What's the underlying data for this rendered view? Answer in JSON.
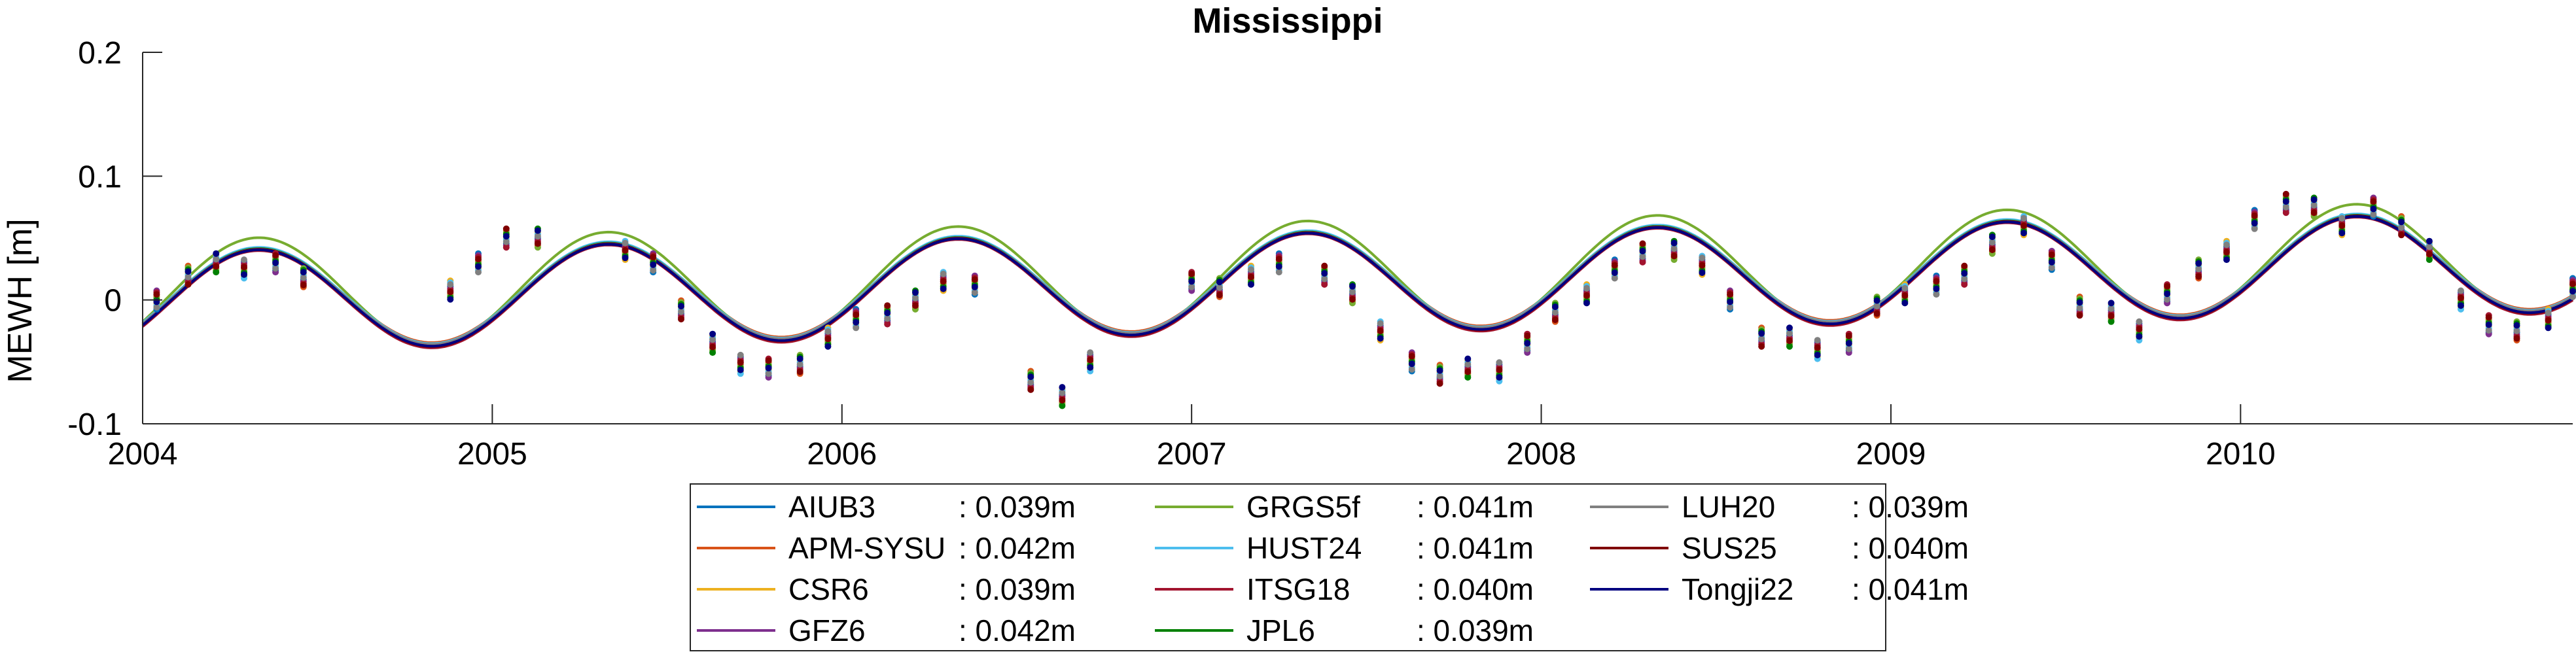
{
  "chart_data": {
    "type": "line",
    "title": "Mississippi",
    "xlabel": "",
    "ylabel": "MEWH [m]",
    "xlim": [
      2004,
      2010.95
    ],
    "ylim": [
      -0.1,
      0.2
    ],
    "x_ticks": [
      "2004",
      "2005",
      "2006",
      "2007",
      "2008",
      "2009",
      "2010"
    ],
    "y_ticks": [
      "-0.1",
      "0",
      "0.1",
      "0.2"
    ],
    "grid": false,
    "legend_position": "bottom-center",
    "model_params": {
      "amplitude": 0.04,
      "peak_month_fraction": 0.33,
      "trend_per_year": 0.0045,
      "base_2004": -0.025
    },
    "series": [
      {
        "name": "AIUB3",
        "rmse": ": 0.039m",
        "color": "#0072BD",
        "amp_scale": 1.0,
        "offset": 0.0
      },
      {
        "name": "APM-SYSU",
        "rmse": ": 0.042m",
        "color": "#D95319",
        "amp_scale": 0.98,
        "offset": 0.001
      },
      {
        "name": "CSR6",
        "rmse": ": 0.039m",
        "color": "#EDB120",
        "amp_scale": 1.0,
        "offset": 0.0
      },
      {
        "name": "GFZ6",
        "rmse": ": 0.042m",
        "color": "#7E2F8E",
        "amp_scale": 1.02,
        "offset": -0.001
      },
      {
        "name": "GRGS5f",
        "rmse": ": 0.041m",
        "color": "#77AC30",
        "amp_scale": 1.12,
        "offset": 0.004
      },
      {
        "name": "HUST24",
        "rmse": ": 0.041m",
        "color": "#4DBEEE",
        "amp_scale": 1.0,
        "offset": 0.001
      },
      {
        "name": "ITSG18",
        "rmse": ": 0.040m",
        "color": "#A2142F",
        "amp_scale": 1.01,
        "offset": -0.002
      },
      {
        "name": "JPL6",
        "rmse": ": 0.039m",
        "color": "#008000",
        "amp_scale": 1.0,
        "offset": 0.0
      },
      {
        "name": "LUH20",
        "rmse": ": 0.039m",
        "color": "#808080",
        "amp_scale": 0.99,
        "offset": 0.0
      },
      {
        "name": "SUS25",
        "rmse": ": 0.040m",
        "color": "#800000",
        "amp_scale": 1.01,
        "offset": -0.001
      },
      {
        "name": "Tongji22",
        "rmse": ": 0.041m",
        "color": "#000080",
        "amp_scale": 1.0,
        "offset": -0.001
      }
    ],
    "observations": [
      [
        2004.04,
        0.0
      ],
      [
        2004.13,
        0.02
      ],
      [
        2004.21,
        0.03
      ],
      [
        2004.29,
        0.025
      ],
      [
        2004.38,
        0.03
      ],
      [
        2004.46,
        0.018
      ],
      [
        2004.88,
        0.008
      ],
      [
        2004.96,
        0.03
      ],
      [
        2005.04,
        0.05
      ],
      [
        2005.13,
        0.05
      ],
      [
        2005.38,
        0.04
      ],
      [
        2005.46,
        0.03
      ],
      [
        2005.54,
        -0.008
      ],
      [
        2005.63,
        -0.035
      ],
      [
        2005.71,
        -0.052
      ],
      [
        2005.79,
        -0.055
      ],
      [
        2005.88,
        -0.052
      ],
      [
        2005.96,
        -0.03
      ],
      [
        2006.04,
        -0.015
      ],
      [
        2006.13,
        -0.012
      ],
      [
        2006.21,
        0.0
      ],
      [
        2006.29,
        0.015
      ],
      [
        2006.38,
        0.012
      ],
      [
        2006.54,
        -0.065
      ],
      [
        2006.63,
        -0.078
      ],
      [
        2006.71,
        -0.05
      ],
      [
        2007.0,
        0.015
      ],
      [
        2007.08,
        0.01
      ],
      [
        2007.17,
        0.02
      ],
      [
        2007.25,
        0.03
      ],
      [
        2007.38,
        0.02
      ],
      [
        2007.46,
        0.005
      ],
      [
        2007.54,
        -0.025
      ],
      [
        2007.63,
        -0.05
      ],
      [
        2007.71,
        -0.06
      ],
      [
        2007.79,
        -0.055
      ],
      [
        2007.88,
        -0.058
      ],
      [
        2007.96,
        -0.035
      ],
      [
        2008.04,
        -0.01
      ],
      [
        2008.13,
        0.005
      ],
      [
        2008.21,
        0.025
      ],
      [
        2008.29,
        0.038
      ],
      [
        2008.38,
        0.04
      ],
      [
        2008.46,
        0.028
      ],
      [
        2008.54,
        0.0
      ],
      [
        2008.63,
        -0.03
      ],
      [
        2008.71,
        -0.03
      ],
      [
        2008.79,
        -0.04
      ],
      [
        2008.88,
        -0.035
      ],
      [
        2008.96,
        -0.005
      ],
      [
        2009.04,
        0.005
      ],
      [
        2009.13,
        0.012
      ],
      [
        2009.21,
        0.02
      ],
      [
        2009.29,
        0.045
      ],
      [
        2009.38,
        0.06
      ],
      [
        2009.46,
        0.032
      ],
      [
        2009.54,
        -0.005
      ],
      [
        2009.63,
        -0.01
      ],
      [
        2009.71,
        -0.025
      ],
      [
        2009.79,
        0.005
      ],
      [
        2009.88,
        0.025
      ],
      [
        2009.96,
        0.04
      ],
      [
        2010.04,
        0.065
      ],
      [
        2010.13,
        0.078
      ],
      [
        2010.21,
        0.075
      ],
      [
        2010.29,
        0.06
      ],
      [
        2010.38,
        0.075
      ],
      [
        2010.46,
        0.06
      ],
      [
        2010.54,
        0.04
      ],
      [
        2010.63,
        0.0
      ],
      [
        2010.71,
        -0.02
      ],
      [
        2010.79,
        -0.025
      ],
      [
        2010.88,
        -0.015
      ],
      [
        2010.95,
        0.01
      ]
    ]
  }
}
